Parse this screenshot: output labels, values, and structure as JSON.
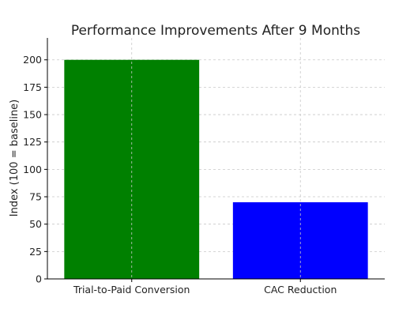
{
  "chart_data": {
    "type": "bar",
    "title": "Performance Improvements After 9 Months",
    "xlabel": "",
    "ylabel": "Index (100 = baseline)",
    "categories": [
      "Trial-to-Paid Conversion",
      "CAC Reduction"
    ],
    "values": [
      200,
      70
    ],
    "colors": [
      "#008000",
      "#0000ff"
    ],
    "ylim": [
      0,
      220
    ],
    "yticks": [
      0,
      25,
      50,
      75,
      100,
      125,
      150,
      175,
      200
    ],
    "grid": true
  }
}
